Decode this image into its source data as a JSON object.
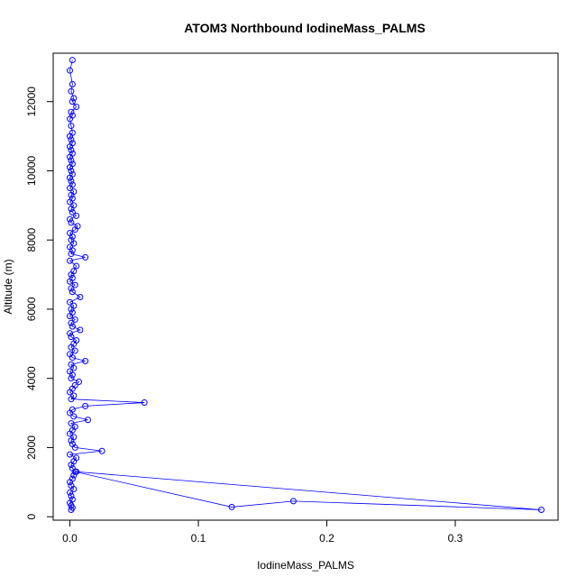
{
  "chart_data": {
    "type": "line",
    "title": "ATOM3 Northbound IodineMass_PALMS",
    "xlabel": "IodineMass_PALMS",
    "ylabel": "Altitude (m)",
    "xlim": [
      -0.013,
      0.38
    ],
    "ylim": [
      -100,
      13400
    ],
    "x_ticks": [
      0,
      0.1,
      0.2,
      0.3
    ],
    "x_tick_labels": [
      "0.0",
      "0.1",
      "0.2",
      "0.3"
    ],
    "y_ticks": [
      0,
      2000,
      4000,
      6000,
      8000,
      10000,
      12000
    ],
    "y_tick_labels": [
      "0",
      "2000",
      "4000",
      "6000",
      "8000",
      "10000",
      "12000"
    ],
    "series_color": "#0000ff",
    "marker": "open-circle",
    "series": [
      {
        "points": [
          [
            0.001,
            200
          ],
          [
            0.002,
            260
          ],
          [
            0.001,
            320
          ],
          [
            0.0,
            400
          ],
          [
            0.002,
            500
          ],
          [
            0.001,
            600
          ],
          [
            0.0,
            700
          ],
          [
            0.003,
            800
          ],
          [
            0.001,
            900
          ],
          [
            0.0,
            1000
          ],
          [
            0.002,
            1100
          ],
          [
            0.003,
            1200
          ],
          [
            0.004,
            1300
          ],
          [
            0.126,
            280
          ],
          [
            0.174,
            450
          ],
          [
            0.367,
            200
          ],
          [
            0.005,
            1300
          ],
          [
            0.002,
            1400
          ],
          [
            0.001,
            1500
          ],
          [
            0.003,
            1600
          ],
          [
            0.005,
            1700
          ],
          [
            0.0,
            1800
          ],
          [
            0.025,
            1900
          ],
          [
            0.004,
            2000
          ],
          [
            0.002,
            2100
          ],
          [
            0.001,
            2200
          ],
          [
            0.003,
            2300
          ],
          [
            0.0,
            2400
          ],
          [
            0.002,
            2500
          ],
          [
            0.004,
            2600
          ],
          [
            0.001,
            2700
          ],
          [
            0.014,
            2800
          ],
          [
            0.003,
            2900
          ],
          [
            0.0,
            3000
          ],
          [
            0.002,
            3100
          ],
          [
            0.012,
            3200
          ],
          [
            0.058,
            3300
          ],
          [
            0.001,
            3400
          ],
          [
            0.003,
            3500
          ],
          [
            0.0,
            3600
          ],
          [
            0.002,
            3700
          ],
          [
            0.004,
            3800
          ],
          [
            0.007,
            3900
          ],
          [
            0.001,
            4000
          ],
          [
            0.002,
            4100
          ],
          [
            0.0,
            4200
          ],
          [
            0.003,
            4300
          ],
          [
            0.001,
            4400
          ],
          [
            0.012,
            4500
          ],
          [
            0.002,
            4600
          ],
          [
            0.0,
            4700
          ],
          [
            0.004,
            4800
          ],
          [
            0.001,
            4900
          ],
          [
            0.003,
            5000
          ],
          [
            0.005,
            5100
          ],
          [
            0.001,
            5200
          ],
          [
            0.0,
            5300
          ],
          [
            0.008,
            5400
          ],
          [
            0.002,
            5500
          ],
          [
            0.001,
            5600
          ],
          [
            0.004,
            5700
          ],
          [
            0.0,
            5800
          ],
          [
            0.002,
            5900
          ],
          [
            0.001,
            6000
          ],
          [
            0.003,
            6100
          ],
          [
            0.0,
            6200
          ],
          [
            0.008,
            6350
          ],
          [
            0.002,
            6500
          ],
          [
            0.001,
            6600
          ],
          [
            0.004,
            6700
          ],
          [
            0.0,
            6800
          ],
          [
            0.002,
            6900
          ],
          [
            0.001,
            7000
          ],
          [
            0.003,
            7100
          ],
          [
            0.005,
            7250
          ],
          [
            0.0,
            7400
          ],
          [
            0.012,
            7500
          ],
          [
            0.001,
            7600
          ],
          [
            0.002,
            7700
          ],
          [
            0.0,
            7800
          ],
          [
            0.003,
            7900
          ],
          [
            0.001,
            8000
          ],
          [
            0.002,
            8100
          ],
          [
            0.0,
            8200
          ],
          [
            0.004,
            8300
          ],
          [
            0.006,
            8400
          ],
          [
            0.001,
            8500
          ],
          [
            0.0,
            8600
          ],
          [
            0.005,
            8700
          ],
          [
            0.002,
            8800
          ],
          [
            0.001,
            8900
          ],
          [
            0.003,
            9000
          ],
          [
            0.0,
            9100
          ],
          [
            0.002,
            9200
          ],
          [
            0.001,
            9300
          ],
          [
            0.003,
            9400
          ],
          [
            0.0,
            9500
          ],
          [
            0.002,
            9600
          ],
          [
            0.001,
            9700
          ],
          [
            0.0,
            9800
          ],
          [
            0.002,
            9900
          ],
          [
            0.001,
            10000
          ],
          [
            0.0,
            10100
          ],
          [
            0.002,
            10200
          ],
          [
            0.001,
            10300
          ],
          [
            0.0,
            10400
          ],
          [
            0.002,
            10500
          ],
          [
            0.001,
            10600
          ],
          [
            0.0,
            10700
          ],
          [
            0.002,
            10800
          ],
          [
            0.001,
            10900
          ],
          [
            0.0,
            11000
          ],
          [
            0.002,
            11100
          ],
          [
            0.001,
            11300
          ],
          [
            0.0,
            11500
          ],
          [
            0.002,
            11600
          ],
          [
            0.001,
            11700
          ],
          [
            0.005,
            11850
          ],
          [
            0.002,
            12000
          ],
          [
            0.003,
            12100
          ],
          [
            0.001,
            12300
          ],
          [
            0.002,
            12500
          ],
          [
            0.0,
            12900
          ],
          [
            0.002,
            13200
          ]
        ]
      }
    ]
  }
}
